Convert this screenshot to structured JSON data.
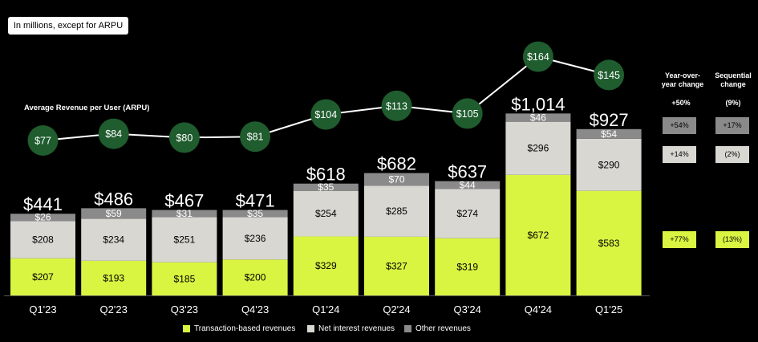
{
  "note": "In millions, except for ARPU",
  "arpu_title": "Average Revenue per User (ARPU)",
  "colors": {
    "transaction": "#d9f542",
    "net_interest": "#d9d7d2",
    "other": "#8a8a8a",
    "arpu_circle": "#1f5c2e",
    "background": "#000000"
  },
  "chart_data": {
    "type": "bar",
    "stacked": true,
    "categories": [
      "Q1'23",
      "Q2'23",
      "Q3'23",
      "Q4'23",
      "Q1'24",
      "Q2'24",
      "Q3'24",
      "Q4'24",
      "Q1'25"
    ],
    "totals": [
      "$441",
      "$486",
      "$467",
      "$471",
      "$618",
      "$682",
      "$637",
      "$1,014",
      "$927"
    ],
    "series": [
      {
        "name": "Transaction-based revenues",
        "values": [
          207,
          193,
          185,
          200,
          329,
          327,
          319,
          672,
          583
        ],
        "labels": [
          "$207",
          "$193",
          "$185",
          "$200",
          "$329",
          "$327",
          "$319",
          "$672",
          "$583"
        ]
      },
      {
        "name": "Net interest revenues",
        "values": [
          208,
          234,
          251,
          236,
          254,
          285,
          274,
          296,
          290
        ],
        "labels": [
          "$208",
          "$234",
          "$251",
          "$236",
          "$254",
          "$285",
          "$274",
          "$296",
          "$290"
        ]
      },
      {
        "name": "Other revenues",
        "values": [
          26,
          59,
          31,
          35,
          35,
          70,
          44,
          46,
          54
        ],
        "labels": [
          "$26",
          "$59",
          "$31",
          "$35",
          "$35",
          "$70",
          "$44",
          "$46",
          "$54"
        ]
      }
    ],
    "arpu": {
      "name": "Average Revenue per User (ARPU)",
      "values": [
        77,
        84,
        80,
        81,
        104,
        113,
        105,
        164,
        145
      ],
      "labels": [
        "$77",
        "$84",
        "$80",
        "$81",
        "$104",
        "$113",
        "$105",
        "$164",
        "$145"
      ]
    },
    "legend_position": "bottom",
    "grid": false
  },
  "side_table": {
    "headers": [
      "Year-over-year change",
      "Sequential change"
    ],
    "header_lines": [
      [
        "Year-over-",
        "year change"
      ],
      [
        "Sequential",
        "change"
      ]
    ],
    "totals": [
      "+50%",
      "(9%)"
    ],
    "rows": [
      {
        "series": "Other revenues",
        "yoy": "+54%",
        "seq": "+17%"
      },
      {
        "series": "Net interest revenues",
        "yoy": "+14%",
        "seq": "(2%)"
      },
      {
        "series": "Transaction-based revenues",
        "yoy": "+77%",
        "seq": "(13%)"
      }
    ]
  }
}
